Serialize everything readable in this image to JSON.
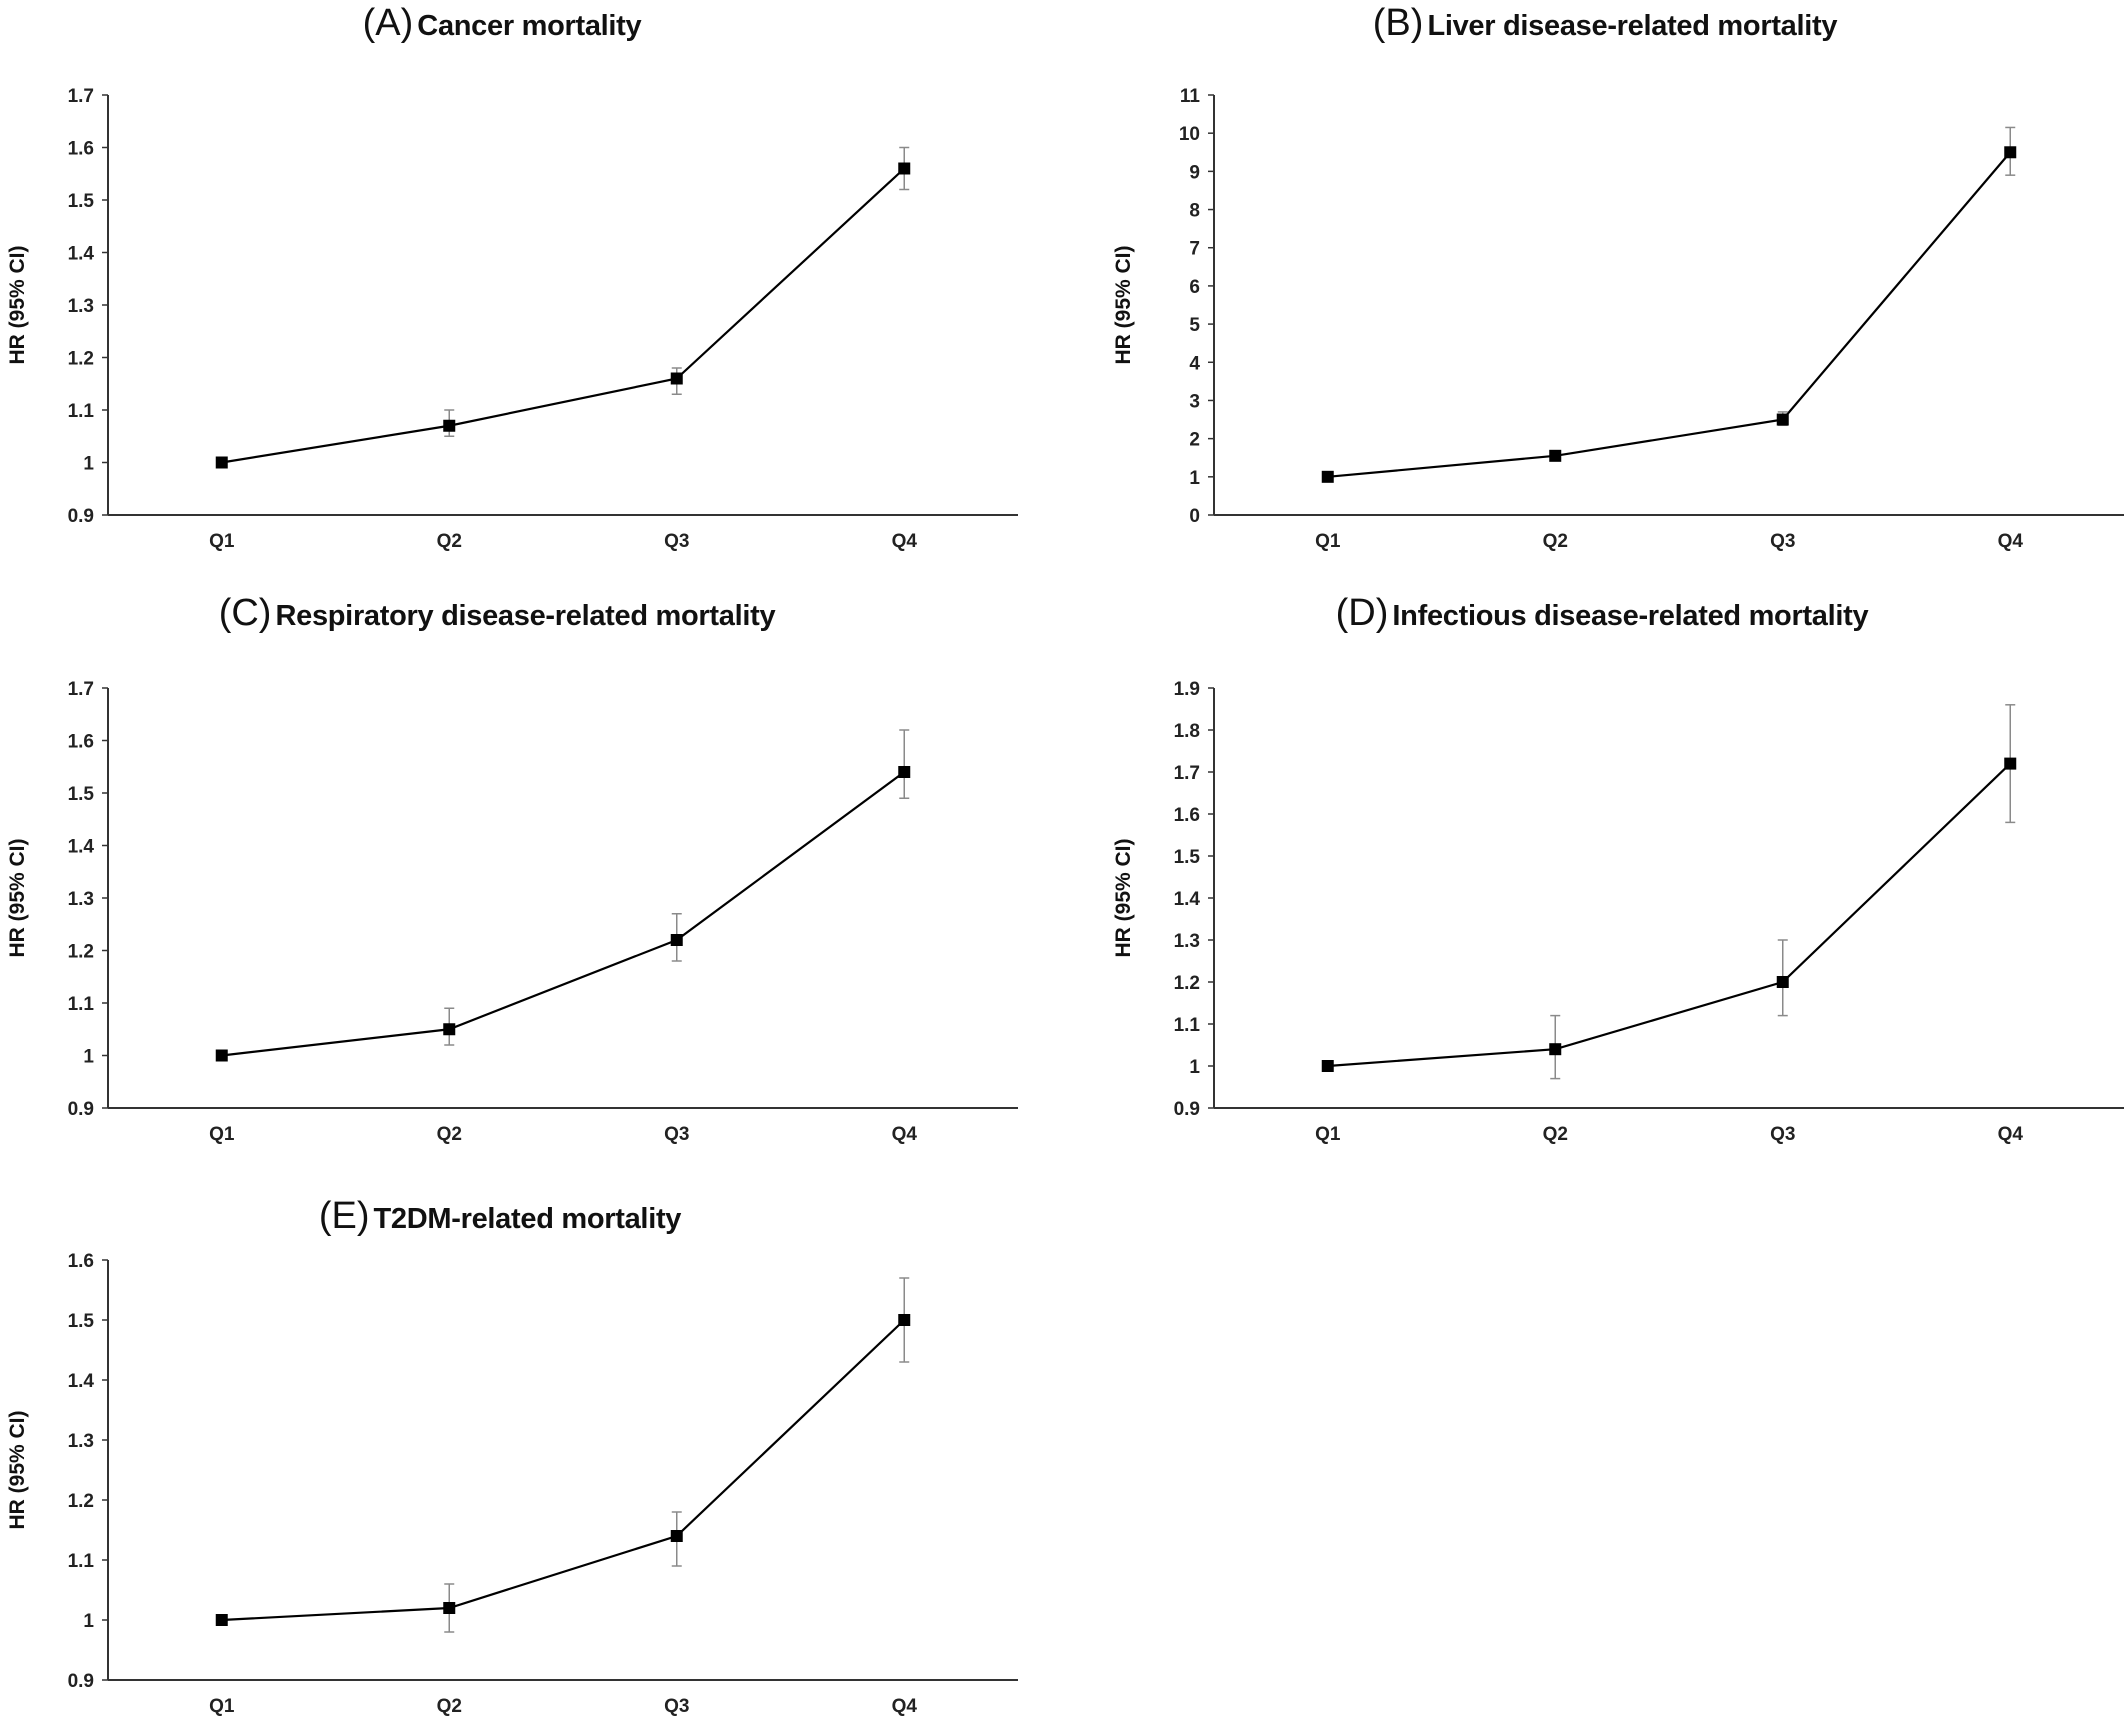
{
  "chart_data": [
    {
      "type": "line",
      "panel_letter": "(A)",
      "title": "Cancer mortality",
      "ylabel": "HR (95% CI)",
      "categories": [
        "Q1",
        "Q2",
        "Q3",
        "Q4"
      ],
      "values": [
        1.0,
        1.07,
        1.16,
        1.56
      ],
      "ci_lower": [
        1.0,
        1.05,
        1.13,
        1.52
      ],
      "ci_upper": [
        1.0,
        1.1,
        1.18,
        1.6
      ],
      "ylim": [
        0.9,
        1.7
      ],
      "yticks": [
        "0.9",
        "1",
        "1.1",
        "1.2",
        "1.3",
        "1.4",
        "1.5",
        "1.6",
        "1.7"
      ],
      "grid": false,
      "legend": "none"
    },
    {
      "type": "line",
      "panel_letter": "(B)",
      "title": "Liver disease-related mortality",
      "ylabel": "HR (95% CI)",
      "categories": [
        "Q1",
        "Q2",
        "Q3",
        "Q4"
      ],
      "values": [
        1.0,
        1.55,
        2.5,
        9.5
      ],
      "ci_lower": [
        1.0,
        1.45,
        2.35,
        8.9
      ],
      "ci_upper": [
        1.0,
        1.65,
        2.7,
        10.15
      ],
      "ylim": [
        0,
        11
      ],
      "yticks": [
        "0",
        "1",
        "2",
        "3",
        "4",
        "5",
        "6",
        "7",
        "8",
        "9",
        "10",
        "11"
      ],
      "grid": false,
      "legend": "none"
    },
    {
      "type": "line",
      "panel_letter": "(C)",
      "title": "Respiratory disease-related mortality",
      "ylabel": "HR (95% CI)",
      "categories": [
        "Q1",
        "Q2",
        "Q3",
        "Q4"
      ],
      "values": [
        1.0,
        1.05,
        1.22,
        1.54
      ],
      "ci_lower": [
        1.0,
        1.02,
        1.18,
        1.49
      ],
      "ci_upper": [
        1.0,
        1.09,
        1.27,
        1.62
      ],
      "ylim": [
        0.9,
        1.7
      ],
      "yticks": [
        "0.9",
        "1",
        "1.1",
        "1.2",
        "1.3",
        "1.4",
        "1.5",
        "1.6",
        "1.7"
      ],
      "grid": false,
      "legend": "none"
    },
    {
      "type": "line",
      "panel_letter": "(D)",
      "title": "Infectious disease-related mortality",
      "ylabel": "HR (95% CI)",
      "categories": [
        "Q1",
        "Q2",
        "Q3",
        "Q4"
      ],
      "values": [
        1.0,
        1.04,
        1.2,
        1.72
      ],
      "ci_lower": [
        1.0,
        0.97,
        1.12,
        1.58
      ],
      "ci_upper": [
        1.0,
        1.12,
        1.3,
        1.86
      ],
      "ylim": [
        0.9,
        1.9
      ],
      "yticks": [
        "0.9",
        "1",
        "1.1",
        "1.2",
        "1.3",
        "1.4",
        "1.5",
        "1.6",
        "1.7",
        "1.8",
        "1.9"
      ],
      "grid": false,
      "legend": "none"
    },
    {
      "type": "line",
      "panel_letter": "(E)",
      "title": "T2DM-related mortality",
      "ylabel": "HR (95% CI)",
      "categories": [
        "Q1",
        "Q2",
        "Q3",
        "Q4"
      ],
      "values": [
        1.0,
        1.02,
        1.14,
        1.5
      ],
      "ci_lower": [
        1.0,
        0.98,
        1.09,
        1.43
      ],
      "ci_upper": [
        1.0,
        1.06,
        1.18,
        1.57
      ],
      "ylim": [
        0.9,
        1.6
      ],
      "yticks": [
        "0.9",
        "1",
        "1.1",
        "1.2",
        "1.3",
        "1.4",
        "1.5",
        "1.6"
      ],
      "grid": false,
      "legend": "none"
    }
  ]
}
